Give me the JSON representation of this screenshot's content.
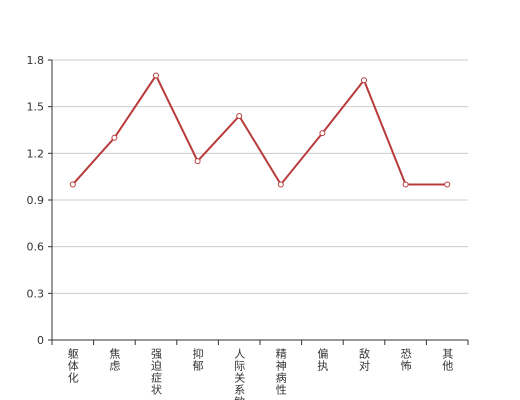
{
  "chart_data": {
    "type": "line",
    "categories": [
      "躯体化",
      "焦虑",
      "强迫症状",
      "抑郁",
      "人际关系敏感",
      "精神病性",
      "偏执",
      "敌对",
      "恐怖",
      "其他"
    ],
    "values": [
      1.0,
      1.3,
      1.7,
      1.15,
      1.44,
      1.0,
      1.33,
      1.67,
      1.0,
      1.0
    ],
    "color": "#b83b3b",
    "ylim": [
      0,
      1.8
    ],
    "yticks": [
      0,
      0.3,
      0.6,
      0.9,
      1.2,
      1.5,
      1.8
    ],
    "grid": true
  }
}
